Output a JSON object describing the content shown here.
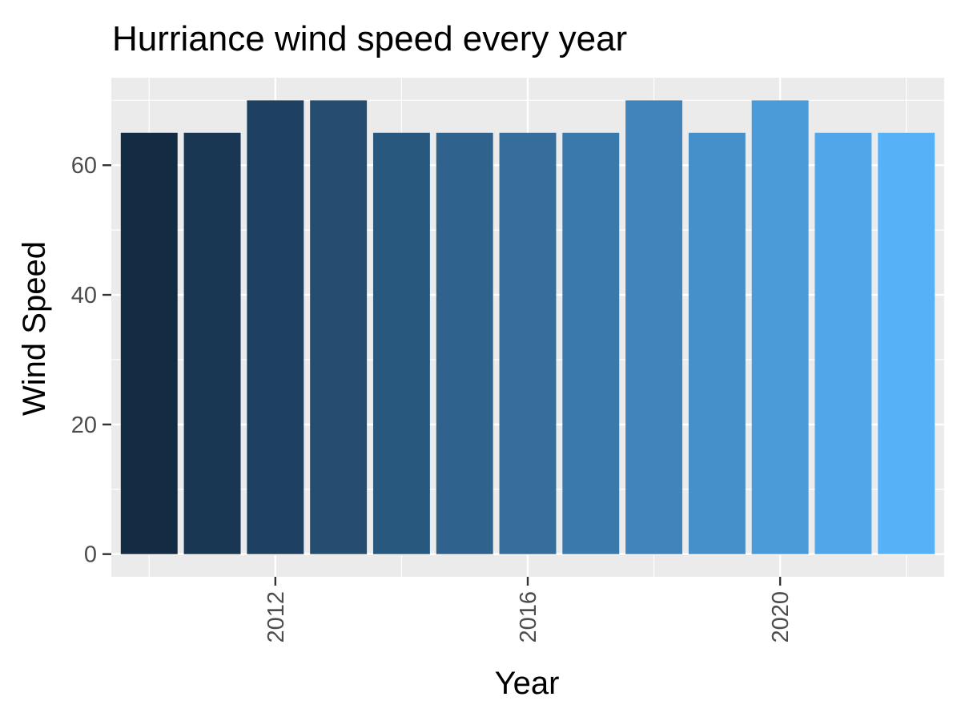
{
  "chart_data": {
    "type": "bar",
    "title": "Hurriance wind speed every year",
    "xlabel": "Year",
    "ylabel": "Wind Speed",
    "x": [
      2010,
      2011,
      2012,
      2013,
      2014,
      2015,
      2016,
      2017,
      2018,
      2019,
      2020,
      2021,
      2022
    ],
    "values": [
      65,
      65,
      70,
      70,
      65,
      65,
      65,
      65,
      70,
      65,
      70,
      65,
      65
    ],
    "xlim": [
      2009.4,
      2022.6
    ],
    "ylim": [
      -3.5,
      73.5
    ],
    "x_ticks": [
      2012,
      2016,
      2020
    ],
    "x_tick_labels": [
      "2012",
      "2016",
      "2020"
    ],
    "y_ticks": [
      0,
      20,
      40,
      60
    ],
    "y_tick_labels": [
      "0",
      "20",
      "40",
      "60"
    ],
    "x_tick_label_rotation": "vertical",
    "grid": true,
    "legend": "none",
    "colors": {
      "panel_background": "#EBEBEB",
      "grid": "#FFFFFF",
      "bar_gradient_low": "#132B43",
      "bar_gradient_high": "#56B1F7",
      "tick_label": "#4D4D4D",
      "tick_mark": "#333333"
    }
  }
}
